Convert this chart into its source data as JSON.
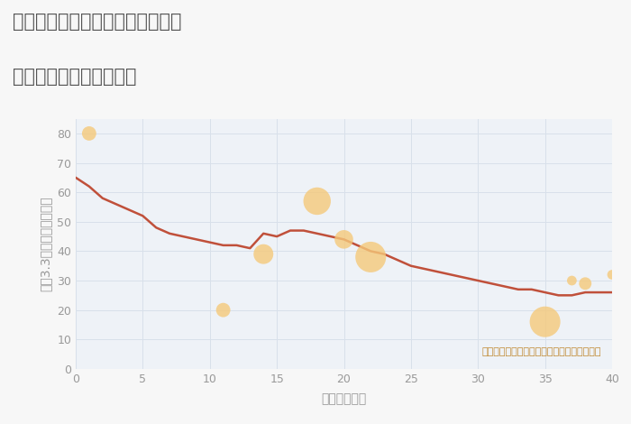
{
  "title_line1": "福岡県北九州市小倉北区皿山町の",
  "title_line2": "築年数別中古戸建て価格",
  "xlabel": "築年数（年）",
  "ylabel": "坪（3.3㎡）単価（万円）",
  "background_color": "#f7f7f7",
  "plot_bg_color": "#eef2f7",
  "line_color": "#c0503a",
  "line_x": [
    0,
    1,
    2,
    3,
    4,
    5,
    6,
    7,
    8,
    9,
    10,
    11,
    12,
    13,
    14,
    15,
    16,
    17,
    18,
    19,
    20,
    21,
    22,
    23,
    24,
    25,
    26,
    27,
    28,
    29,
    30,
    31,
    32,
    33,
    34,
    35,
    36,
    37,
    38,
    39,
    40
  ],
  "line_y": [
    65,
    62,
    58,
    56,
    54,
    52,
    48,
    46,
    45,
    44,
    43,
    42,
    42,
    41,
    46,
    45,
    47,
    47,
    46,
    45,
    44,
    42,
    40,
    39,
    37,
    35,
    34,
    33,
    32,
    31,
    30,
    29,
    28,
    27,
    27,
    26,
    25,
    25,
    26,
    26,
    26
  ],
  "bubble_x": [
    1,
    11,
    14,
    18,
    20,
    22,
    35,
    37,
    38,
    40
  ],
  "bubble_y": [
    80,
    20,
    39,
    57,
    44,
    38,
    16,
    30,
    29,
    32
  ],
  "bubble_size": [
    130,
    130,
    250,
    480,
    220,
    600,
    600,
    60,
    100,
    60
  ],
  "bubble_color": "#f5c97a",
  "bubble_alpha": 0.8,
  "annotation": "円の大きさは、取引のあった物件面積を示す",
  "annotation_color": "#c08830",
  "xlim": [
    0,
    40
  ],
  "ylim": [
    0,
    85
  ],
  "xticks": [
    0,
    5,
    10,
    15,
    20,
    25,
    30,
    35,
    40
  ],
  "yticks": [
    0,
    10,
    20,
    30,
    40,
    50,
    60,
    70,
    80
  ],
  "grid_color": "#d8e0ea",
  "title_color": "#555555",
  "axis_label_color": "#999999",
  "tick_color": "#999999",
  "title_fontsize": 15,
  "axis_label_fontsize": 10,
  "tick_fontsize": 9,
  "annotation_fontsize": 8
}
